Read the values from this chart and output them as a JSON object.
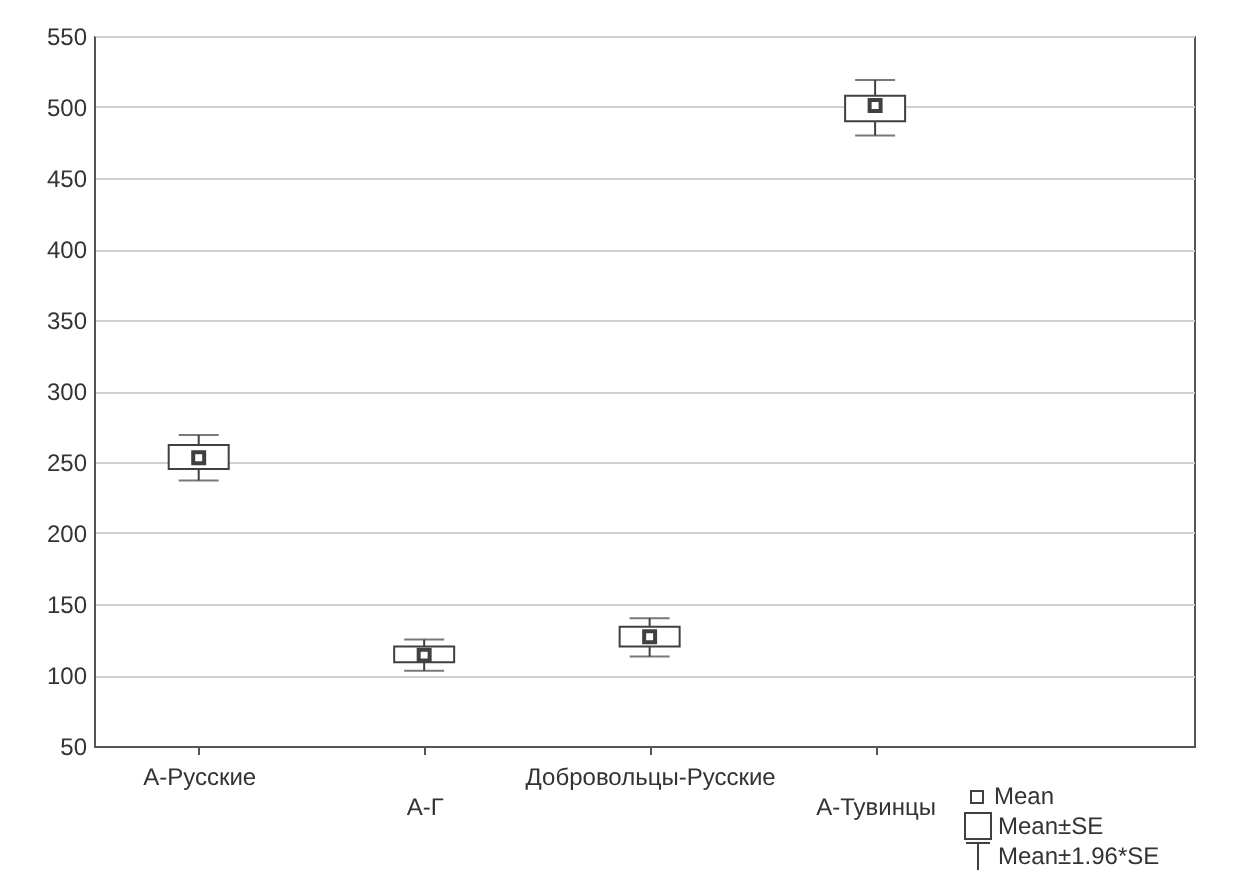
{
  "chart_data": {
    "type": "box",
    "categories": [
      "А-Русские",
      "А-Г",
      "Добровольцы-Русские",
      "А-Тувинцы"
    ],
    "series": [
      {
        "color": "#404040",
        "boxes": [
          {
            "low": 237,
            "q1": 245,
            "median": 253,
            "q3": 262,
            "high": 269
          },
          {
            "low": 103,
            "q1": 109,
            "median": 114,
            "q3": 120,
            "high": 125
          },
          {
            "low": 113,
            "q1": 120,
            "median": 127,
            "q3": 134,
            "high": 140
          },
          {
            "low": 480,
            "q1": 490,
            "median": 501,
            "q3": 508,
            "high": 519
          }
        ]
      }
    ],
    "ylim": [
      50,
      550
    ],
    "yticks": [
      50,
      100,
      150,
      200,
      250,
      300,
      350,
      400,
      450,
      500,
      550
    ],
    "grid": "y",
    "annotations": [
      "Mean",
      "Mean±SE",
      "Mean±1.96*SE"
    ]
  }
}
